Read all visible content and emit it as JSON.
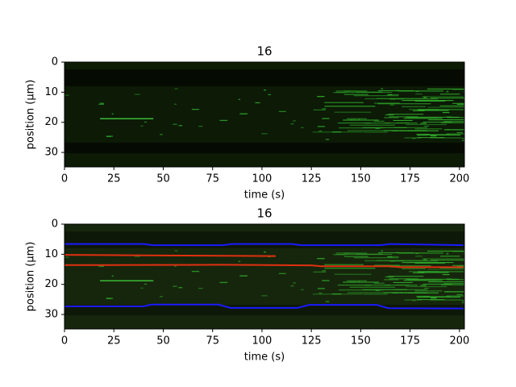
{
  "chart_data": [
    {
      "type": "image",
      "title": "16",
      "xlabel": "time (s)",
      "ylabel": "position (μm)",
      "xlim": [
        0,
        202.5
      ],
      "ylim": [
        34.8,
        0
      ],
      "xticks": [
        0,
        25,
        50,
        75,
        100,
        125,
        150,
        175,
        200
      ],
      "yticks": [
        0,
        10,
        20,
        30
      ]
    },
    {
      "type": "image",
      "title": "16",
      "xlabel": "time (s)",
      "ylabel": "position (μm)",
      "xlim": [
        0,
        202.5
      ],
      "ylim": [
        34.8,
        0
      ],
      "xticks": [
        0,
        25,
        50,
        75,
        100,
        125,
        150,
        175,
        200
      ],
      "yticks": [
        0,
        10,
        20,
        30
      ],
      "series": [
        {
          "color": "#1a1aff",
          "x": [
            0,
            40,
            45,
            80,
            85,
            115,
            120,
            160,
            165,
            202
          ],
          "values": [
            6.6,
            6.6,
            7.0,
            7.0,
            6.6,
            6.6,
            7.0,
            7.0,
            6.6,
            7.0
          ]
        },
        {
          "color": "#1a1aff",
          "x": [
            0,
            40,
            44,
            78,
            84,
            118,
            124,
            158,
            164,
            202
          ],
          "values": [
            27.3,
            27.3,
            26.7,
            26.7,
            27.8,
            27.8,
            26.8,
            26.8,
            27.9,
            28.0
          ]
        },
        {
          "color": "#e03010",
          "x": [
            0,
            50,
            107
          ],
          "values": [
            10.2,
            10.4,
            10.6
          ]
        },
        {
          "color": "#e03010",
          "x": [
            0,
            80,
            125,
            130,
            165,
            170,
            202
          ],
          "values": [
            13.6,
            13.5,
            13.7,
            14.0,
            14.0,
            14.3,
            14.3
          ]
        }
      ]
    }
  ]
}
